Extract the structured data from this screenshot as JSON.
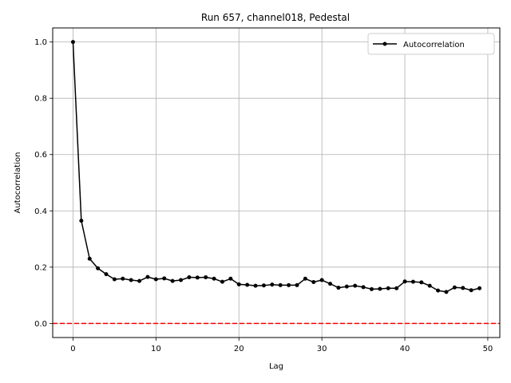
{
  "chart_data": {
    "type": "line",
    "title": "Run 657, channel018, Pedestal",
    "xlabel": "Lag",
    "ylabel": "Autocorrelation",
    "xlim": [
      -2.45,
      51.45
    ],
    "ylim": [
      -0.05,
      1.05
    ],
    "xticks": [
      0,
      10,
      20,
      30,
      40,
      50
    ],
    "yticks": [
      0.0,
      0.2,
      0.4,
      0.6,
      0.8,
      1.0
    ],
    "grid": true,
    "legend_position": "top-right",
    "series": [
      {
        "name": "Autocorrelation",
        "color": "#000000",
        "marker": "dot",
        "x": [
          0,
          1,
          2,
          3,
          4,
          5,
          6,
          7,
          8,
          9,
          10,
          11,
          12,
          13,
          14,
          15,
          16,
          17,
          18,
          19,
          20,
          21,
          22,
          23,
          24,
          25,
          26,
          27,
          28,
          29,
          30,
          31,
          32,
          33,
          34,
          35,
          36,
          37,
          38,
          39,
          40,
          41,
          42,
          43,
          44,
          45,
          46,
          47,
          48,
          49
        ],
        "y": [
          1.0,
          0.365,
          0.23,
          0.196,
          0.175,
          0.157,
          0.159,
          0.154,
          0.151,
          0.165,
          0.157,
          0.16,
          0.151,
          0.154,
          0.164,
          0.163,
          0.164,
          0.159,
          0.148,
          0.159,
          0.139,
          0.137,
          0.134,
          0.135,
          0.138,
          0.136,
          0.136,
          0.136,
          0.159,
          0.147,
          0.154,
          0.141,
          0.127,
          0.131,
          0.134,
          0.129,
          0.122,
          0.123,
          0.125,
          0.125,
          0.149,
          0.148,
          0.146,
          0.134,
          0.117,
          0.112,
          0.128,
          0.126,
          0.118,
          0.125
        ]
      }
    ],
    "reference_line": {
      "y": 0.0,
      "color": "#ff0000",
      "style": "dashed"
    }
  }
}
